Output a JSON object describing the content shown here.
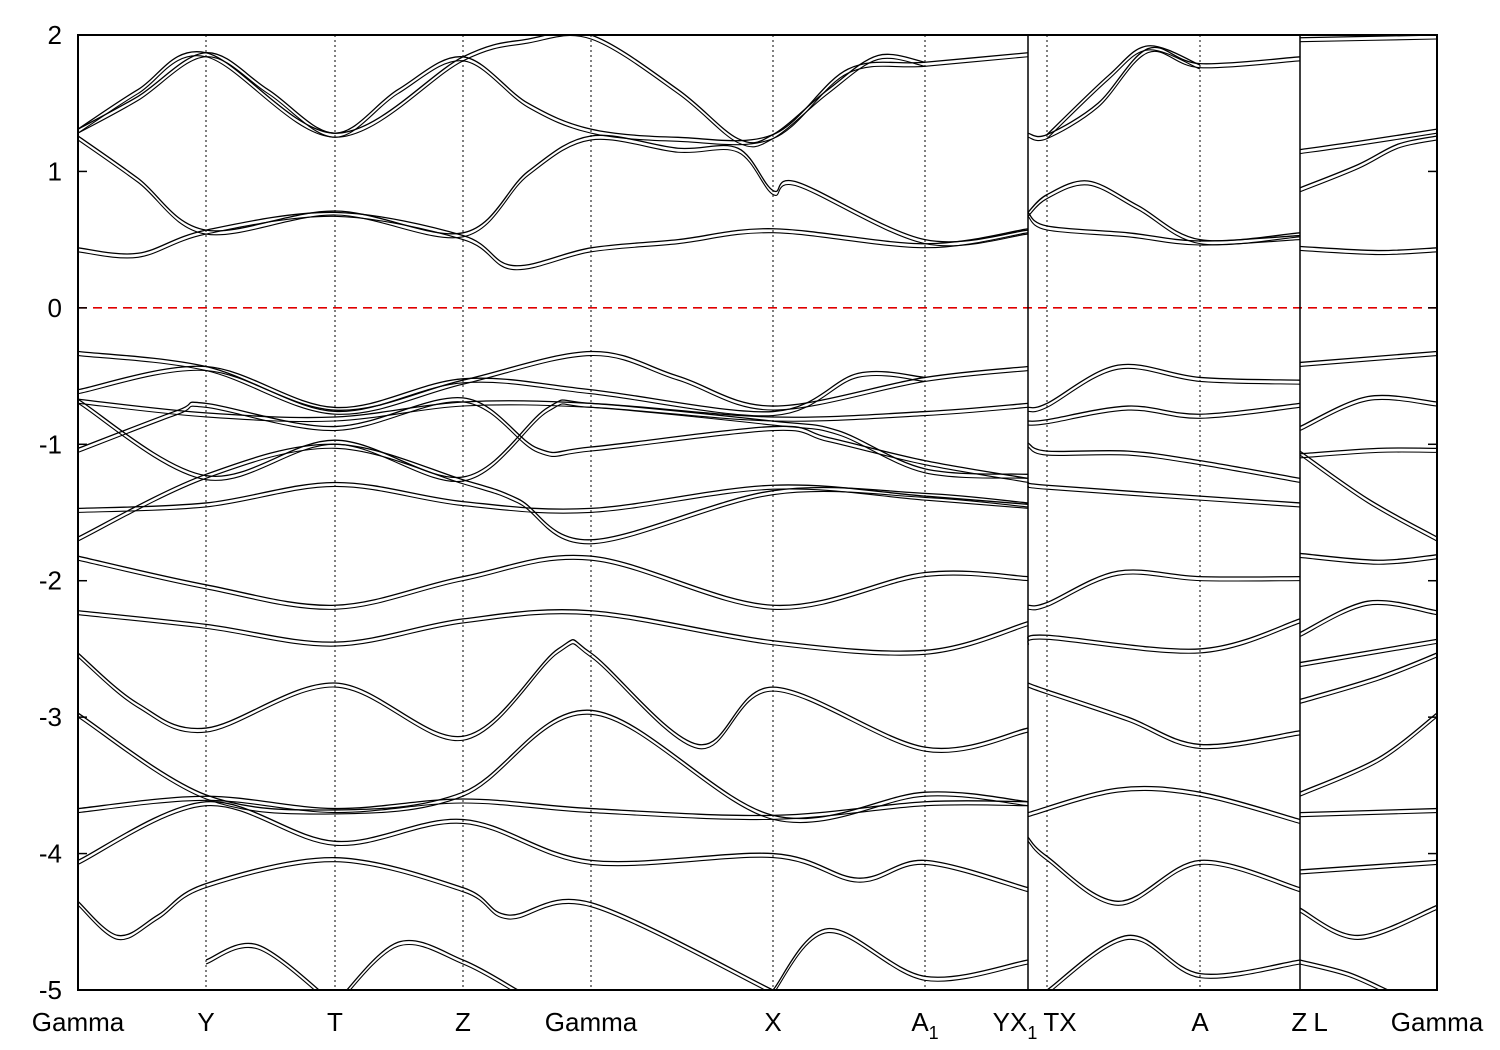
{
  "chart_data": {
    "type": "line",
    "title": "",
    "xlabel": "",
    "ylabel": "",
    "ylim": [
      -5,
      2
    ],
    "xlim": [
      0,
      13.59
    ],
    "yticks": [
      2,
      1,
      0,
      -1,
      -2,
      -3,
      -4,
      -5
    ],
    "ytick_labels": [
      "2",
      "1",
      "0",
      "-1",
      "-2",
      "-3",
      "-4",
      "-5"
    ],
    "fermi_level": 0,
    "colors": {
      "bands": "#000000",
      "fermi": "#e00000",
      "grid": "#000000"
    },
    "kpoints": [
      {
        "k": 0,
        "label": "Gamma",
        "sub": ""
      },
      {
        "k": 1.28,
        "label": "Y",
        "sub": ""
      },
      {
        "k": 2.57,
        "label": "T",
        "sub": ""
      },
      {
        "k": 3.85,
        "label": "Z",
        "sub": ""
      },
      {
        "k": 5.13,
        "label": "Gamma",
        "sub": ""
      },
      {
        "k": 6.95,
        "label": "X",
        "sub": ""
      },
      {
        "k": 8.47,
        "label": "A",
        "sub": "1"
      },
      {
        "k": 9.5,
        "label": "YX",
        "sub": "1"
      },
      {
        "k": 9.69,
        "label": "TX",
        "sub": ""
      },
      {
        "k": 11.22,
        "label": "A",
        "sub": ""
      },
      {
        "k": 12.22,
        "label": "Z",
        "sub": ""
      },
      {
        "k": 12.42,
        "label": "L",
        "sub": ""
      },
      {
        "k": 13.59,
        "label": "Gamma",
        "sub": ""
      }
    ],
    "dotted_lines_k": [
      1.28,
      2.57,
      3.85,
      5.13,
      6.95,
      8.47,
      9.5,
      9.69,
      11.22,
      12.22
    ],
    "breaks_k": [
      9.5,
      12.22
    ],
    "bands": [
      [
        [
          0,
          0.44
        ],
        [
          0.6,
          0.4
        ],
        [
          1.28,
          0.57
        ],
        [
          2.57,
          0.7
        ],
        [
          3.85,
          0.53
        ],
        [
          4.35,
          0.31
        ],
        [
          5.13,
          0.44
        ],
        [
          6.0,
          0.5
        ],
        [
          6.95,
          0.58
        ],
        [
          8.47,
          0.47
        ],
        [
          9.5,
          0.58
        ]
      ],
      [
        [
          0,
          1.26
        ],
        [
          0.6,
          0.95
        ],
        [
          1.28,
          0.57
        ],
        [
          2.57,
          0.71
        ],
        [
          3.85,
          0.55
        ],
        [
          4.5,
          1.0
        ],
        [
          5.13,
          1.26
        ],
        [
          6.0,
          1.17
        ],
        [
          6.6,
          1.17
        ],
        [
          6.95,
          0.86
        ],
        [
          7.2,
          0.92
        ],
        [
          8.47,
          0.5
        ],
        [
          9.5,
          0.57
        ]
      ],
      [
        [
          0,
          1.31
        ],
        [
          0.6,
          1.55
        ],
        [
          1.28,
          1.87
        ],
        [
          1.9,
          1.6
        ],
        [
          2.57,
          1.28
        ],
        [
          3.2,
          1.6
        ],
        [
          3.85,
          1.84
        ],
        [
          4.5,
          1.5
        ],
        [
          5.13,
          1.31
        ],
        [
          6.0,
          1.25
        ],
        [
          6.95,
          1.27
        ],
        [
          7.7,
          1.75
        ],
        [
          8.47,
          1.8
        ],
        [
          9.5,
          1.87
        ]
      ],
      [
        [
          0,
          1.31
        ],
        [
          0.6,
          1.6
        ],
        [
          1.28,
          1.87
        ],
        [
          2.57,
          1.28
        ],
        [
          3.85,
          1.84
        ],
        [
          4.5,
          1.97
        ],
        [
          5.13,
          2.0
        ],
        [
          6.0,
          1.6
        ],
        [
          6.6,
          1.24
        ],
        [
          6.95,
          1.27
        ],
        [
          7.5,
          1.6
        ],
        [
          8.0,
          1.85
        ],
        [
          8.47,
          1.8
        ]
      ],
      [
        [
          9.5,
          0.7
        ],
        [
          9.69,
          0.6
        ],
        [
          10.5,
          0.55
        ],
        [
          11.22,
          0.49
        ],
        [
          12.22,
          0.53
        ]
      ],
      [
        [
          9.5,
          0.7
        ],
        [
          9.69,
          0.83
        ],
        [
          10.1,
          0.93
        ],
        [
          10.6,
          0.75
        ],
        [
          11.22,
          0.5
        ],
        [
          12.22,
          0.55
        ]
      ],
      [
        [
          9.5,
          1.28
        ],
        [
          9.69,
          1.27
        ],
        [
          10.2,
          1.5
        ],
        [
          10.7,
          1.9
        ],
        [
          11.22,
          1.79
        ],
        [
          12.22,
          1.84
        ]
      ],
      [
        [
          9.69,
          1.27
        ],
        [
          10.3,
          1.7
        ],
        [
          10.7,
          1.92
        ],
        [
          11.22,
          1.78
        ]
      ],
      [
        [
          12.22,
          0.45
        ],
        [
          13.0,
          0.42
        ],
        [
          13.59,
          0.44
        ]
      ],
      [
        [
          12.22,
          0.88
        ],
        [
          12.8,
          1.05
        ],
        [
          13.2,
          1.2
        ],
        [
          13.59,
          1.26
        ]
      ],
      [
        [
          12.22,
          1.16
        ],
        [
          12.8,
          1.22
        ],
        [
          13.59,
          1.31
        ]
      ],
      [
        [
          12.22,
          1.98
        ],
        [
          13.59,
          2.0
        ]
      ],
      [
        [
          0,
          -0.32
        ],
        [
          1.28,
          -0.43
        ],
        [
          2.57,
          -0.75
        ],
        [
          3.85,
          -0.53
        ],
        [
          5.13,
          -0.32
        ],
        [
          6.0,
          -0.5
        ],
        [
          6.95,
          -0.72
        ],
        [
          8.47,
          -0.51
        ],
        [
          9.5,
          -0.43
        ]
      ],
      [
        [
          0,
          -0.6
        ],
        [
          1.28,
          -0.43
        ],
        [
          2.57,
          -0.73
        ],
        [
          3.85,
          -0.52
        ],
        [
          5.13,
          -0.6
        ],
        [
          6.95,
          -0.76
        ],
        [
          7.8,
          -0.48
        ],
        [
          8.47,
          -0.51
        ]
      ],
      [
        [
          0,
          -0.67
        ],
        [
          1.28,
          -0.77
        ],
        [
          2.57,
          -0.8
        ],
        [
          3.85,
          -0.69
        ],
        [
          5.13,
          -0.7
        ],
        [
          6.95,
          -0.8
        ],
        [
          8.47,
          -0.76
        ],
        [
          9.5,
          -0.7
        ]
      ],
      [
        [
          0,
          -1.03
        ],
        [
          1.0,
          -0.75
        ],
        [
          1.28,
          -0.7
        ],
        [
          2.57,
          -0.87
        ],
        [
          3.85,
          -0.66
        ],
        [
          4.6,
          -1.03
        ],
        [
          5.13,
          -1.02
        ],
        [
          6.95,
          -0.87
        ],
        [
          7.5,
          -0.95
        ],
        [
          8.47,
          -1.12
        ],
        [
          9.5,
          -1.25
        ]
      ],
      [
        [
          0,
          -0.67
        ],
        [
          1.28,
          -1.23
        ],
        [
          2.57,
          -0.97
        ],
        [
          3.85,
          -1.24
        ],
        [
          4.7,
          -0.73
        ],
        [
          5.13,
          -0.7
        ],
        [
          6.95,
          -0.83
        ],
        [
          7.6,
          -0.9
        ],
        [
          8.47,
          -1.18
        ],
        [
          9.5,
          -1.22
        ]
      ],
      [
        [
          0,
          -1.47
        ],
        [
          1.28,
          -1.43
        ],
        [
          2.57,
          -1.28
        ],
        [
          3.85,
          -1.42
        ],
        [
          5.13,
          -1.47
        ],
        [
          6.95,
          -1.3
        ],
        [
          8.47,
          -1.38
        ],
        [
          9.5,
          -1.44
        ]
      ],
      [
        [
          0,
          -1.68
        ],
        [
          1.28,
          -1.22
        ],
        [
          2.57,
          -1.0
        ],
        [
          3.85,
          -1.26
        ],
        [
          4.4,
          -1.4
        ],
        [
          5.13,
          -1.7
        ],
        [
          6.95,
          -1.34
        ],
        [
          8.47,
          -1.36
        ],
        [
          9.5,
          -1.43
        ]
      ],
      [
        [
          0,
          -1.82
        ],
        [
          1.28,
          -2.03
        ],
        [
          2.57,
          -2.18
        ],
        [
          3.85,
          -1.97
        ],
        [
          5.13,
          -1.82
        ],
        [
          6.95,
          -2.18
        ],
        [
          8.47,
          -1.94
        ],
        [
          9.5,
          -1.97
        ]
      ],
      [
        [
          0,
          -2.22
        ],
        [
          1.28,
          -2.32
        ],
        [
          2.57,
          -2.45
        ],
        [
          3.85,
          -2.28
        ],
        [
          5.13,
          -2.22
        ],
        [
          6.95,
          -2.44
        ],
        [
          8.47,
          -2.51
        ],
        [
          9.5,
          -2.3
        ]
      ],
      [
        [
          0,
          -2.53
        ],
        [
          0.6,
          -2.9
        ],
        [
          1.28,
          -3.08
        ],
        [
          2.57,
          -2.75
        ],
        [
          3.85,
          -3.14
        ],
        [
          4.8,
          -2.5
        ],
        [
          5.13,
          -2.53
        ],
        [
          6.2,
          -3.2
        ],
        [
          6.95,
          -2.78
        ],
        [
          8.47,
          -3.22
        ],
        [
          9.5,
          -3.08
        ]
      ],
      [
        [
          0,
          -2.97
        ],
        [
          1.28,
          -3.57
        ],
        [
          2.57,
          -3.68
        ],
        [
          3.85,
          -3.55
        ],
        [
          5.13,
          -2.95
        ],
        [
          6.95,
          -3.72
        ],
        [
          8.47,
          -3.55
        ],
        [
          9.5,
          -3.62
        ]
      ],
      [
        [
          0,
          -3.67
        ],
        [
          1.28,
          -3.58
        ],
        [
          2.57,
          -3.67
        ],
        [
          3.85,
          -3.6
        ],
        [
          5.13,
          -3.67
        ],
        [
          6.95,
          -3.72
        ],
        [
          8.47,
          -3.62
        ],
        [
          9.5,
          -3.62
        ]
      ],
      [
        [
          0,
          -4.05
        ],
        [
          1.28,
          -3.62
        ],
        [
          2.57,
          -3.91
        ],
        [
          3.85,
          -3.75
        ],
        [
          5.13,
          -4.05
        ],
        [
          6.95,
          -4.0
        ],
        [
          7.8,
          -4.18
        ],
        [
          8.47,
          -4.05
        ],
        [
          9.5,
          -4.25
        ]
      ],
      [
        [
          0,
          -4.35
        ],
        [
          0.4,
          -4.6
        ],
        [
          0.8,
          -4.45
        ],
        [
          1.28,
          -4.22
        ],
        [
          2.57,
          -4.03
        ],
        [
          3.85,
          -4.25
        ],
        [
          4.3,
          -4.45
        ],
        [
          5.13,
          -4.36
        ],
        [
          6.95,
          -5.0
        ]
      ],
      [
        [
          1.28,
          -4.78
        ],
        [
          1.8,
          -4.67
        ],
        [
          2.57,
          -5.1
        ]
      ],
      [
        [
          2.57,
          -5.1
        ],
        [
          3.2,
          -4.65
        ],
        [
          3.85,
          -4.78
        ],
        [
          4.4,
          -5.0
        ]
      ],
      [
        [
          6.95,
          -5.0
        ],
        [
          7.5,
          -4.55
        ],
        [
          8.47,
          -4.9
        ],
        [
          9.5,
          -4.78
        ]
      ],
      [
        [
          9.5,
          -0.73
        ],
        [
          9.69,
          -0.7
        ],
        [
          10.4,
          -0.42
        ],
        [
          11.22,
          -0.51
        ],
        [
          12.22,
          -0.53
        ]
      ],
      [
        [
          9.5,
          -0.83
        ],
        [
          9.69,
          -0.82
        ],
        [
          10.5,
          -0.72
        ],
        [
          11.22,
          -0.78
        ],
        [
          12.22,
          -0.7
        ]
      ],
      [
        [
          9.5,
          -0.99
        ],
        [
          9.69,
          -1.05
        ],
        [
          10.5,
          -1.05
        ],
        [
          11.22,
          -1.12
        ],
        [
          12.22,
          -1.25
        ]
      ],
      [
        [
          9.5,
          -1.28
        ],
        [
          9.69,
          -1.3
        ],
        [
          11.22,
          -1.38
        ],
        [
          12.22,
          -1.43
        ]
      ],
      [
        [
          9.5,
          -2.18
        ],
        [
          9.69,
          -2.16
        ],
        [
          10.4,
          -1.93
        ],
        [
          11.22,
          -1.97
        ],
        [
          12.22,
          -1.97
        ]
      ],
      [
        [
          9.5,
          -2.44
        ],
        [
          9.69,
          -2.4
        ],
        [
          11.22,
          -2.5
        ],
        [
          12.22,
          -2.28
        ]
      ],
      [
        [
          9.5,
          -2.75
        ],
        [
          9.69,
          -2.8
        ],
        [
          10.5,
          -3.0
        ],
        [
          11.22,
          -3.2
        ],
        [
          12.22,
          -3.1
        ]
      ],
      [
        [
          9.5,
          -3.7
        ],
        [
          10.4,
          -3.52
        ],
        [
          11.22,
          -3.55
        ],
        [
          12.22,
          -3.75
        ]
      ],
      [
        [
          9.5,
          -3.88
        ],
        [
          9.69,
          -4.02
        ],
        [
          10.4,
          -4.35
        ],
        [
          11.22,
          -4.05
        ],
        [
          12.22,
          -4.25
        ]
      ],
      [
        [
          9.69,
          -5.0
        ],
        [
          10.5,
          -4.6
        ],
        [
          11.22,
          -4.88
        ],
        [
          12.22,
          -4.78
        ]
      ],
      [
        [
          12.22,
          -0.4
        ],
        [
          13.59,
          -0.32
        ]
      ],
      [
        [
          12.22,
          -0.87
        ],
        [
          12.9,
          -0.65
        ],
        [
          13.59,
          -0.69
        ]
      ],
      [
        [
          12.22,
          -1.07
        ],
        [
          13.0,
          -1.03
        ],
        [
          13.59,
          -1.03
        ]
      ],
      [
        [
          12.22,
          -1.05
        ],
        [
          12.9,
          -1.4
        ],
        [
          13.59,
          -1.68
        ]
      ],
      [
        [
          12.22,
          -1.8
        ],
        [
          13.0,
          -1.85
        ],
        [
          13.59,
          -1.81
        ]
      ],
      [
        [
          12.22,
          -2.38
        ],
        [
          12.9,
          -2.15
        ],
        [
          13.59,
          -2.22
        ]
      ],
      [
        [
          12.22,
          -2.6
        ],
        [
          13.59,
          -2.43
        ]
      ],
      [
        [
          12.22,
          -2.87
        ],
        [
          13.0,
          -2.7
        ],
        [
          13.59,
          -2.53
        ]
      ],
      [
        [
          12.22,
          -3.55
        ],
        [
          13.0,
          -3.3
        ],
        [
          13.59,
          -2.97
        ]
      ],
      [
        [
          12.22,
          -3.7
        ],
        [
          13.59,
          -3.67
        ]
      ],
      [
        [
          12.22,
          -4.12
        ],
        [
          13.59,
          -4.05
        ]
      ],
      [
        [
          12.22,
          -4.4
        ],
        [
          12.8,
          -4.6
        ],
        [
          13.59,
          -4.38
        ]
      ],
      [
        [
          12.22,
          -4.78
        ],
        [
          12.7,
          -4.87
        ],
        [
          13.1,
          -5.0
        ]
      ]
    ]
  }
}
